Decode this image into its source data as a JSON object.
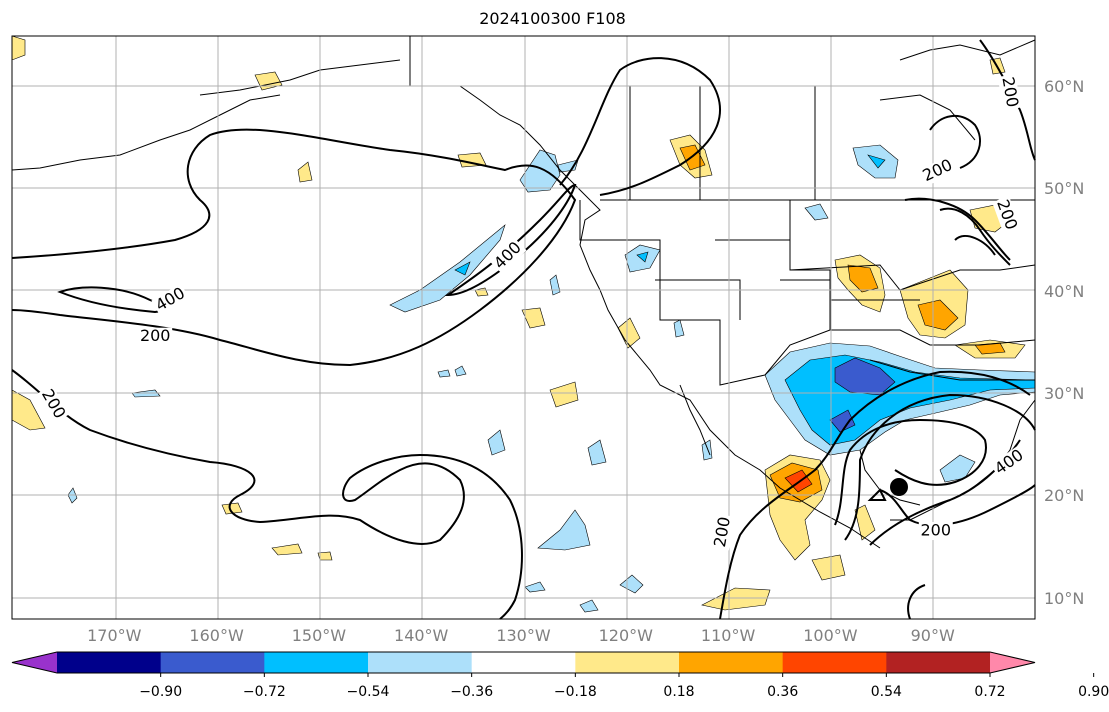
{
  "title": "2024100300 F108",
  "lat_labels": [
    {
      "text": "60°N",
      "lat": 60
    },
    {
      "text": "50°N",
      "lat": 50
    },
    {
      "text": "40°N",
      "lat": 40
    },
    {
      "text": "30°N",
      "lat": 30
    },
    {
      "text": "20°N",
      "lat": 20
    },
    {
      "text": "10°N",
      "lat": 10
    }
  ],
  "lon_labels": [
    {
      "text": "170°W",
      "lon": -170
    },
    {
      "text": "160°W",
      "lon": -160
    },
    {
      "text": "150°W",
      "lon": -150
    },
    {
      "text": "140°W",
      "lon": -140
    },
    {
      "text": "130°W",
      "lon": -130
    },
    {
      "text": "120°W",
      "lon": -120
    },
    {
      "text": "110°W",
      "lon": -110
    },
    {
      "text": "100°W",
      "lon": -100
    },
    {
      "text": "90°W",
      "lon": -90
    }
  ],
  "colorbar": {
    "ticks": [
      "−0.90",
      "−0.72",
      "−0.54",
      "−0.36",
      "−0.18",
      "0.18",
      "0.36",
      "0.54",
      "0.72",
      "0.90"
    ],
    "colors": [
      "#9932CC",
      "#00008B",
      "#3A5BCE",
      "#00BFFF",
      "#ADE0FA",
      "#FFFFFF",
      "#FFE98A",
      "#FFA500",
      "#FF4500",
      "#B22222",
      "#FF88AA"
    ]
  },
  "contour_labels": [
    {
      "text": "400",
      "lon": -164.5,
      "lat": 39.2,
      "rot": -30
    },
    {
      "text": "200",
      "lon": -166,
      "lat": 35.6,
      "rot": 0
    },
    {
      "text": "200",
      "lon": -176,
      "lat": 29,
      "rot": 60
    },
    {
      "text": "400",
      "lon": -131.5,
      "lat": 43.5,
      "rot": -45
    },
    {
      "text": "200",
      "lon": -89.5,
      "lat": 51.8,
      "rot": -25
    },
    {
      "text": "200",
      "lon": -82.5,
      "lat": 59.5,
      "rot": 80
    },
    {
      "text": "200",
      "lon": -82.8,
      "lat": 47.5,
      "rot": 70
    },
    {
      "text": "200",
      "lon": -110.5,
      "lat": 16.5,
      "rot": -80
    },
    {
      "text": "400",
      "lon": -82.5,
      "lat": 23.3,
      "rot": -35
    },
    {
      "text": "200",
      "lon": -89.7,
      "lat": 16.6,
      "rot": 0
    }
  ],
  "storm_marker": {
    "lon": -92.2,
    "lat": 20.8
  }
}
